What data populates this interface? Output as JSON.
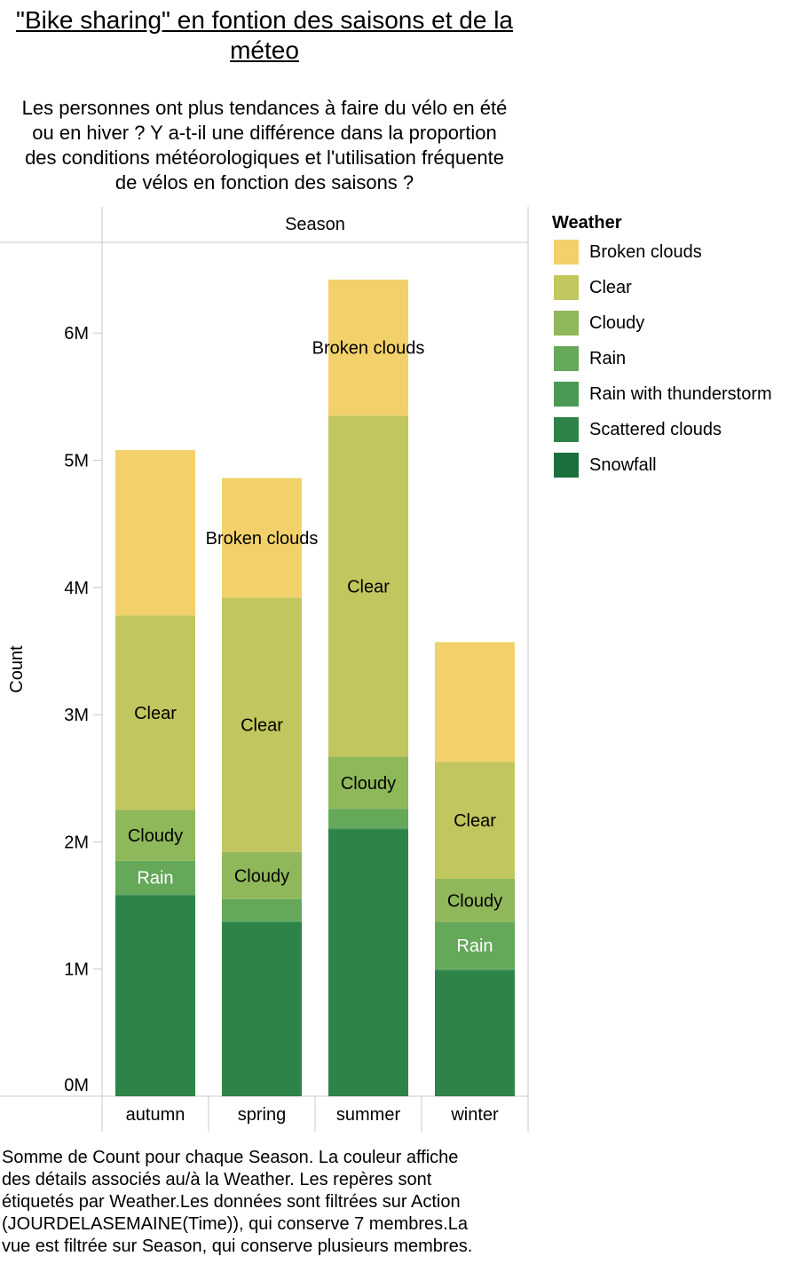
{
  "title": "\"Bike sharing\" en fontion des saisons et de la méteo",
  "subtitle": "Les personnes ont plus tendances à faire du vélo en été\nou en hiver ? Y a-t-il une différence dans la proportion\ndes conditions météorologiques et l'utilisation fréquente\nde vélos en fonction des saisons ?",
  "caption": "Somme de Count pour chaque Season. La couleur affiche\ndes détails associés au/à la Weather. Les repères sont\nétiquetés par Weather.Les données sont filtrées sur Action\n(JOURDELASEMAINE(Time)), qui conserve 7 membres.La\nvue est filtrée sur Season, qui conserve plusieurs membres.",
  "legend": {
    "title": "Weather",
    "items": [
      {
        "label": "Broken clouds",
        "color": "#f2d16b"
      },
      {
        "label": "Clear",
        "color": "#c2c65e"
      },
      {
        "label": "Cloudy",
        "color": "#8fb85a"
      },
      {
        "label": "Rain",
        "color": "#65a85a"
      },
      {
        "label": "Rain with thunderstorm",
        "color": "#4a9a54"
      },
      {
        "label": "Scattered clouds",
        "color": "#2e8448"
      },
      {
        "label": "Snowfall",
        "color": "#1b6f3c"
      }
    ]
  },
  "chart_data": {
    "type": "bar",
    "stacked": true,
    "column_header": "Season",
    "ylabel": "Count",
    "ylim": [
      0,
      6800000
    ],
    "yticks": [
      {
        "value": 0,
        "label": "0M"
      },
      {
        "value": 1000000,
        "label": "1M"
      },
      {
        "value": 2000000,
        "label": "2M"
      },
      {
        "value": 3000000,
        "label": "3M"
      },
      {
        "value": 4000000,
        "label": "4M"
      },
      {
        "value": 5000000,
        "label": "5M"
      },
      {
        "value": 6000000,
        "label": "6M"
      }
    ],
    "categories": [
      "autumn",
      "spring",
      "summer",
      "winter"
    ],
    "series": [
      {
        "name": "Snowfall",
        "values": [
          0,
          0,
          0,
          0
        ]
      },
      {
        "name": "Scattered clouds",
        "values": [
          1580000,
          1370000,
          2100000,
          990000
        ]
      },
      {
        "name": "Rain with thunderstorm",
        "values": [
          10000,
          10000,
          10000,
          10000
        ]
      },
      {
        "name": "Rain",
        "values": [
          260000,
          170000,
          150000,
          370000
        ]
      },
      {
        "name": "Cloudy",
        "values": [
          400000,
          370000,
          410000,
          340000
        ]
      },
      {
        "name": "Clear",
        "values": [
          1530000,
          2000000,
          2680000,
          920000
        ]
      },
      {
        "name": "Broken clouds",
        "values": [
          1300000,
          940000,
          1070000,
          940000
        ]
      }
    ],
    "mark_labels": [
      {
        "category": "autumn",
        "series": "Rain",
        "text": "Rain"
      },
      {
        "category": "autumn",
        "series": "Cloudy",
        "text": "Cloudy"
      },
      {
        "category": "autumn",
        "series": "Clear",
        "text": "Clear"
      },
      {
        "category": "spring",
        "series": "Cloudy",
        "text": "Cloudy"
      },
      {
        "category": "spring",
        "series": "Clear",
        "text": "Clear"
      },
      {
        "category": "spring",
        "series": "Broken clouds",
        "text": "Broken clouds"
      },
      {
        "category": "summer",
        "series": "Cloudy",
        "text": "Cloudy"
      },
      {
        "category": "summer",
        "series": "Clear",
        "text": "Clear"
      },
      {
        "category": "summer",
        "series": "Broken clouds",
        "text": "Broken clouds"
      },
      {
        "category": "winter",
        "series": "Rain",
        "text": "Rain"
      },
      {
        "category": "winter",
        "series": "Cloudy",
        "text": "Cloudy"
      },
      {
        "category": "winter",
        "series": "Clear",
        "text": "Clear"
      }
    ],
    "white_label_series": [
      "Rain"
    ],
    "legend_position": "right",
    "grid": false
  }
}
